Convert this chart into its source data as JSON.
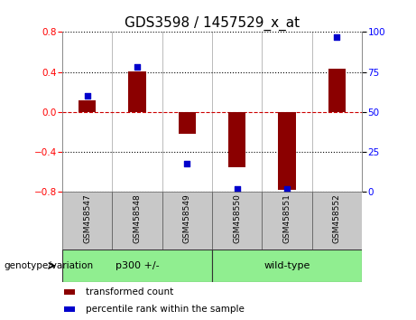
{
  "title": "GDS3598 / 1457529_x_at",
  "samples": [
    "GSM458547",
    "GSM458548",
    "GSM458549",
    "GSM458550",
    "GSM458551",
    "GSM458552"
  ],
  "bar_values": [
    0.12,
    0.41,
    -0.22,
    -0.55,
    -0.78,
    0.43
  ],
  "percentile_values": [
    60,
    78,
    18,
    2,
    2,
    97
  ],
  "ylim_left": [
    -0.8,
    0.8
  ],
  "ylim_right": [
    0,
    100
  ],
  "yticks_left": [
    -0.8,
    -0.4,
    0.0,
    0.4,
    0.8
  ],
  "yticks_right": [
    0,
    25,
    50,
    75,
    100
  ],
  "bar_color": "#8B0000",
  "dot_color": "#0000CC",
  "group1_label": "p300 +/-",
  "group2_label": "wild-type",
  "group_color": "#90EE90",
  "group_label_prefix": "genotype/variation",
  "legend_bar_label": "transformed count",
  "legend_dot_label": "percentile rank within the sample",
  "background_color": "#ffffff",
  "tick_label_area_bg": "#c8c8c8",
  "zero_line_color": "#cc0000",
  "title_fontsize": 11,
  "tick_fontsize": 7.5,
  "sample_fontsize": 6.5
}
